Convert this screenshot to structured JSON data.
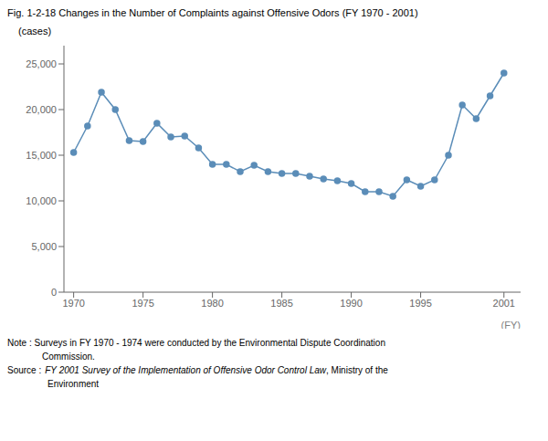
{
  "chart_data": {
    "type": "line",
    "title": "Fig. 1-2-18  Changes in the Number of Complaints against Offensive Odors (FY 1970 - 2001)",
    "x_label": "(FY)",
    "y_label": "(cases)",
    "x": [
      1970,
      1971,
      1972,
      1973,
      1974,
      1975,
      1976,
      1977,
      1978,
      1979,
      1980,
      1981,
      1982,
      1983,
      1984,
      1985,
      1986,
      1987,
      1988,
      1989,
      1990,
      1991,
      1992,
      1993,
      1994,
      1995,
      1996,
      1997,
      1998,
      1999,
      2000,
      2001
    ],
    "values": [
      15300,
      18200,
      21900,
      20000,
      16600,
      16500,
      18500,
      17000,
      17100,
      15800,
      14000,
      14000,
      13200,
      13900,
      13200,
      13000,
      13000,
      12700,
      12400,
      12200,
      11900,
      11000,
      11000,
      10500,
      12300,
      11600,
      12300,
      15000,
      20500,
      19000,
      21500,
      24000
    ],
    "color": "#5B8DB8",
    "marker": "circle",
    "xlim": [
      1969.3,
      2002.2
    ],
    "xticks": [
      1970,
      1975,
      1980,
      1985,
      1990,
      1995,
      2001
    ],
    "ylim": [
      0,
      27000
    ],
    "yticks": [
      0,
      {
        "value": 5000,
        "label": "5,000"
      },
      {
        "value": 10000,
        "label": "10,000"
      },
      {
        "value": 15000,
        "label": "15,000"
      },
      {
        "value": 20000,
        "label": "20,000"
      },
      {
        "value": 25000,
        "label": "25,000"
      }
    ],
    "grid": false,
    "annotations": [
      "Note : Surveys in FY 1970 - 1974 were conducted by the Environmental Dispute Coordination",
      "Commission.",
      "Source :",
      "FY 2001 Survey of the Implementation of Offensive Odor Control Law",
      ", Ministry of the",
      "Environment"
    ]
  }
}
